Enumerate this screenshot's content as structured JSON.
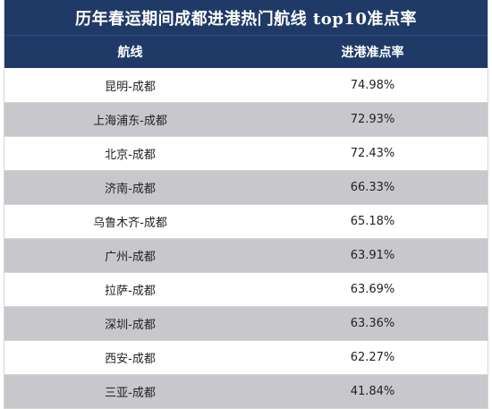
{
  "table": {
    "title": "历年春运期间成都进港热门航线 top10准点率",
    "headers": {
      "route": "航线",
      "rate": "进港准点率"
    },
    "rows": [
      {
        "route": "昆明-成都",
        "rate": "74.98%"
      },
      {
        "route": "上海浦东-成都",
        "rate": "72.93%"
      },
      {
        "route": "北京-成都",
        "rate": "72.43%"
      },
      {
        "route": "济南-成都",
        "rate": "66.33%"
      },
      {
        "route": "乌鲁木齐-成都",
        "rate": "65.18%"
      },
      {
        "route": "广州-成都",
        "rate": "63.91%"
      },
      {
        "route": "拉萨-成都",
        "rate": "63.69%"
      },
      {
        "route": "深圳-成都",
        "rate": "63.36%"
      },
      {
        "route": "西安-成都",
        "rate": "62.27%"
      },
      {
        "route": "三亚-成都",
        "rate": "41.84%"
      }
    ]
  },
  "colors": {
    "header_bg": "#1f3a66",
    "row_alt_bg": "#c8c8cc",
    "row_bg": "#ffffff",
    "text": "#222222"
  }
}
